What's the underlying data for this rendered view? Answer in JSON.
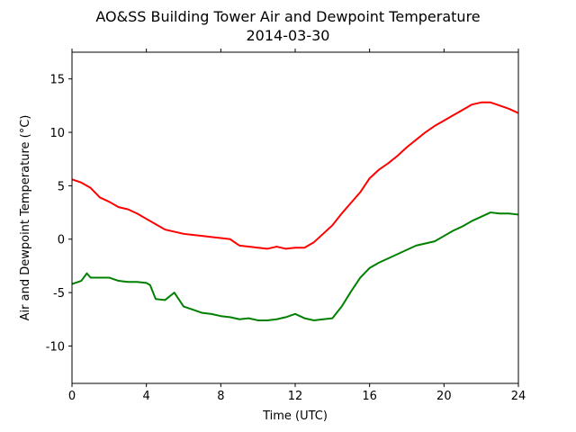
{
  "chart_data": {
    "type": "line",
    "title": "AO&SS Building Tower Air and Dewpoint Temperature",
    "subtitle": "2014-03-30",
    "xlabel": "Time (UTC)",
    "ylabel": "Air and Dewpoint Temperature (°C)",
    "xlim": [
      0,
      24
    ],
    "ylim": [
      -13.5,
      17.5
    ],
    "xticks": [
      0,
      4,
      8,
      12,
      16,
      20,
      24
    ],
    "yticks": [
      -10,
      -5,
      0,
      5,
      10,
      15
    ],
    "grid": false,
    "legend": "none",
    "series": [
      {
        "color": "#ff0000",
        "x": [
          0,
          0.5,
          1,
          1.5,
          2,
          2.5,
          3,
          3.5,
          4,
          4.5,
          5,
          5.5,
          6,
          6.5,
          7,
          7.5,
          8,
          8.5,
          9,
          9.5,
          10,
          10.5,
          11,
          11.5,
          12,
          12.5,
          13,
          13.5,
          14,
          14.5,
          15,
          15.5,
          16,
          16.5,
          17,
          17.5,
          18,
          18.5,
          19,
          19.5,
          20,
          20.5,
          21,
          21.5,
          22,
          22.5,
          23,
          23.5,
          24
        ],
        "values": [
          5.6,
          5.3,
          4.8,
          3.9,
          3.5,
          3.0,
          2.8,
          2.4,
          1.9,
          1.4,
          0.9,
          0.7,
          0.5,
          0.4,
          0.3,
          0.2,
          0.1,
          0.0,
          -0.6,
          -0.7,
          -0.8,
          -0.9,
          -0.7,
          -0.9,
          -0.8,
          -0.8,
          -0.3,
          0.5,
          1.3,
          2.4,
          3.4,
          4.4,
          5.7,
          6.5,
          7.1,
          7.8,
          8.6,
          9.3,
          10.0,
          10.6,
          11.1,
          11.6,
          12.1,
          12.6,
          12.8,
          12.8,
          12.5,
          12.2,
          11.8
        ]
      },
      {
        "color": "#008000",
        "x": [
          0,
          0.5,
          0.8,
          1,
          1.5,
          2,
          2.5,
          3,
          3.5,
          4,
          4.2,
          4.5,
          5,
          5.5,
          6,
          6.5,
          7,
          7.5,
          8,
          8.5,
          9,
          9.5,
          10,
          10.5,
          11,
          11.5,
          12,
          12.5,
          13,
          13.5,
          14,
          14.5,
          15,
          15.5,
          16,
          16.5,
          17,
          17.5,
          18,
          18.5,
          19,
          19.5,
          20,
          20.5,
          21,
          21.5,
          22,
          22.5,
          23,
          23.5,
          24
        ],
        "values": [
          -4.2,
          -3.9,
          -3.2,
          -3.6,
          -3.6,
          -3.6,
          -3.9,
          -4.0,
          -4.0,
          -4.1,
          -4.3,
          -5.6,
          -5.7,
          -5.0,
          -6.3,
          -6.6,
          -6.9,
          -7.0,
          -7.2,
          -7.3,
          -7.5,
          -7.4,
          -7.6,
          -7.6,
          -7.5,
          -7.3,
          -7.0,
          -7.4,
          -7.6,
          -7.5,
          -7.4,
          -6.3,
          -4.9,
          -3.6,
          -2.7,
          -2.2,
          -1.8,
          -1.4,
          -1.0,
          -0.6,
          -0.4,
          -0.2,
          0.3,
          0.8,
          1.2,
          1.7,
          2.1,
          2.5,
          2.4,
          2.4,
          2.3
        ]
      }
    ]
  }
}
